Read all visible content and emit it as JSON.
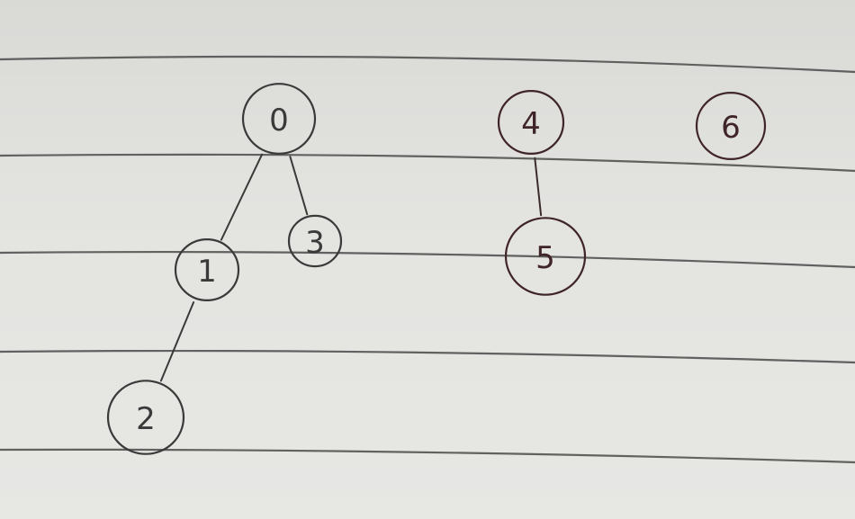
{
  "graph": {
    "nodes": [
      {
        "id": "0",
        "label": "0",
        "ink": "gray"
      },
      {
        "id": "1",
        "label": "1",
        "ink": "gray"
      },
      {
        "id": "2",
        "label": "2",
        "ink": "gray"
      },
      {
        "id": "3",
        "label": "3",
        "ink": "gray"
      },
      {
        "id": "4",
        "label": "4",
        "ink": "maroon"
      },
      {
        "id": "5",
        "label": "5",
        "ink": "maroon"
      },
      {
        "id": "6",
        "label": "6",
        "ink": "maroon"
      }
    ],
    "edges": [
      {
        "from": "0",
        "to": "1"
      },
      {
        "from": "0",
        "to": "3"
      },
      {
        "from": "1",
        "to": "2"
      },
      {
        "from": "4",
        "to": "5"
      }
    ]
  },
  "colors": {
    "paper": "#e3e3e0",
    "ruled_line": "#4a4a4a",
    "gray_ink": "#3a3a3a",
    "maroon_ink": "#3f2529"
  }
}
